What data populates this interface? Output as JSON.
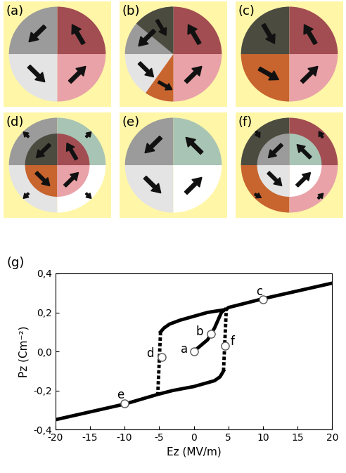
{
  "panels": [
    {
      "label": "(a)"
    },
    {
      "label": "(b)"
    },
    {
      "label": "(c)"
    },
    {
      "label": "(d)"
    },
    {
      "label": "(e)"
    },
    {
      "label": "(f)"
    }
  ],
  "chart_data": {
    "type": "line",
    "title": "(g)",
    "x_label": "Ez (MV/m)",
    "y_label": "Pz (Cm⁻²)",
    "xlim": [
      -20,
      20
    ],
    "ylim": [
      -0.4,
      0.4
    ],
    "xticks": [
      -20,
      -15,
      -10,
      -5,
      0,
      5,
      10,
      15,
      20
    ],
    "yticks": [
      {
        "value": -0.4,
        "label": "-0,4"
      },
      {
        "value": -0.2,
        "label": "-0,2"
      },
      {
        "value": 0.0,
        "label": "0,0"
      },
      {
        "value": 0.2,
        "label": "0,2"
      },
      {
        "value": 0.4,
        "label": "0,4"
      }
    ],
    "grid": false,
    "series": [
      {
        "type": "line",
        "color": "#000000",
        "line_style": "solid",
        "x": [
          20,
          15,
          10,
          5,
          4.7,
          2,
          0,
          -2,
          -3.5,
          -4.3,
          -4.8
        ],
        "values": [
          0.35,
          0.31,
          0.27,
          0.225,
          0.215,
          0.2,
          0.18,
          0.16,
          0.14,
          0.12,
          0.1
        ]
      },
      {
        "type": "line",
        "color": "#000000",
        "line_style": "dashed",
        "x": [
          -4.8,
          -5.2
        ],
        "values": [
          0.1,
          -0.22
        ]
      },
      {
        "type": "line",
        "color": "#000000",
        "line_style": "solid",
        "x": [
          -20,
          -15,
          -10,
          -5.2,
          -3,
          0,
          2,
          3,
          3.8,
          4.3
        ],
        "values": [
          -0.35,
          -0.31,
          -0.27,
          -0.22,
          -0.2,
          -0.18,
          -0.16,
          -0.15,
          -0.13,
          -0.1
        ]
      },
      {
        "type": "line",
        "color": "#000000",
        "line_style": "dashed",
        "x": [
          4.3,
          4.7
        ],
        "values": [
          -0.1,
          0.215
        ]
      },
      {
        "type": "line",
        "color": "#000000",
        "line_style": "solid",
        "x": [
          0,
          1,
          2,
          2.5,
          3,
          3.5,
          4,
          4.5
        ],
        "values": [
          0.0,
          0.03,
          0.06,
          0.09,
          0.12,
          0.16,
          0.2,
          0.215
        ]
      },
      {
        "type": "scatter",
        "color": "#ffffff",
        "marker": "circle",
        "x": [
          0,
          2.5,
          10,
          -4.6,
          -10,
          4.5
        ],
        "values": [
          0.0,
          0.09,
          0.265,
          -0.03,
          -0.265,
          0.03
        ],
        "point_labels": [
          "a",
          "b",
          "c",
          "d",
          "e",
          "f"
        ]
      }
    ]
  }
}
